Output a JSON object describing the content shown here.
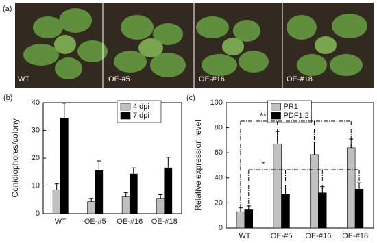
{
  "panel_a": {
    "panel_label": "(a)",
    "plant_labels": [
      "WT",
      "OE-#5",
      "OE-#16",
      "OE-#18"
    ]
  },
  "chart_data": [
    {
      "type": "bar",
      "panel_label": "(b)",
      "y_label": "Conidiophores/colony",
      "categories": [
        "WT",
        "OE-#5",
        "OE-#16",
        "OE-#18"
      ],
      "series": [
        {
          "name": "4 dpi",
          "color": "#c0c0c0",
          "values": [
            8.5,
            4.3,
            6.0,
            5.5
          ],
          "errors": [
            2.2,
            1.2,
            1.5,
            1.3
          ]
        },
        {
          "name": "7 dpi",
          "color": "#000000",
          "values": [
            34.5,
            15.5,
            14.3,
            16.5
          ],
          "errors": [
            5.3,
            3.5,
            2.2,
            3.8
          ]
        }
      ],
      "ylim": [
        0,
        40
      ],
      "yticks": [
        0,
        10,
        20,
        30,
        40
      ],
      "legend": "upper right"
    },
    {
      "type": "bar",
      "panel_label": "(c)",
      "y_label": "Relative expression level",
      "categories": [
        "WT",
        "OE-#5",
        "OE-#16",
        "OE-#18"
      ],
      "series": [
        {
          "name": "PR1",
          "color": "#c0c0c0",
          "values": [
            13,
            67,
            58.5,
            64
          ],
          "errors": [
            3,
            10,
            10,
            7
          ]
        },
        {
          "name": "PDF1.2",
          "color": "#000000",
          "values": [
            14.5,
            27,
            28,
            31
          ],
          "errors": [
            3,
            5,
            5,
            5
          ]
        }
      ],
      "ylim": [
        0,
        100
      ],
      "yticks": [
        0,
        20,
        40,
        60,
        80,
        100
      ],
      "legend": "upper center",
      "annotations": [
        "**",
        "*"
      ]
    }
  ]
}
